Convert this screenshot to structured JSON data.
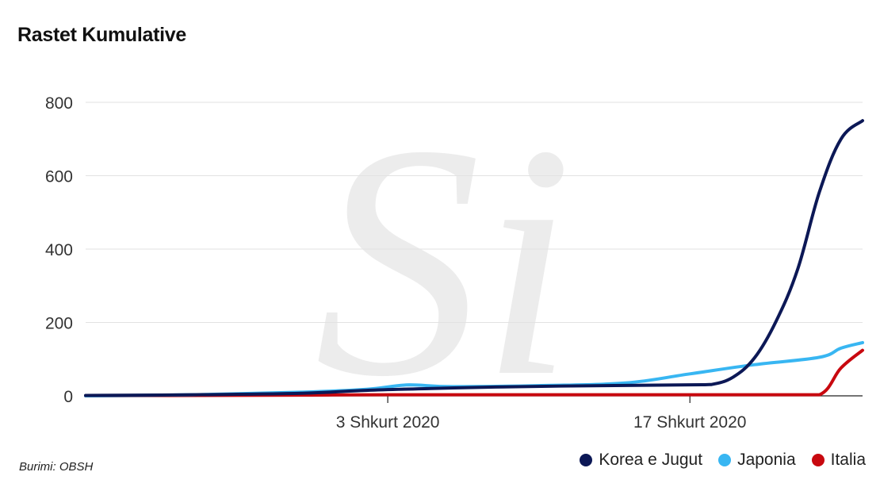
{
  "title": "Rastet Kumulative",
  "source": "Burimi: OBSH",
  "colors": {
    "korea": "#0c1856",
    "japan": "#38b6f2",
    "italy": "#c8080f",
    "grid": "#e2e2e2",
    "axis": "#222222"
  },
  "chart_data": {
    "type": "line",
    "title": "Rastet Kumulative",
    "xlabel": "",
    "ylabel": "",
    "x_range": [
      "2020-01-20",
      "2020-02-25"
    ],
    "ylim": [
      0,
      800
    ],
    "y_ticks": [
      0,
      200,
      400,
      600,
      800
    ],
    "x_ticks": [
      {
        "date": "2020-02-03",
        "label": "3 Shkurt 2020"
      },
      {
        "date": "2020-02-17",
        "label": "17 Shkurt 2020"
      }
    ],
    "grid": true,
    "legend_position": "bottom-right",
    "series": [
      {
        "name": "Korea e Jugut",
        "color": "#0c1856",
        "points": [
          [
            "2020-01-20",
            1
          ],
          [
            "2020-01-25",
            3
          ],
          [
            "2020-01-30",
            7
          ],
          [
            "2020-02-02",
            15
          ],
          [
            "2020-02-05",
            20
          ],
          [
            "2020-02-08",
            24
          ],
          [
            "2020-02-13",
            28
          ],
          [
            "2020-02-17",
            30
          ],
          [
            "2020-02-18",
            31
          ],
          [
            "2020-02-19",
            51
          ],
          [
            "2020-02-20",
            104
          ],
          [
            "2020-02-21",
            204
          ],
          [
            "2020-02-22",
            346
          ],
          [
            "2020-02-23",
            556
          ],
          [
            "2020-02-24",
            700
          ],
          [
            "2020-02-25",
            750
          ]
        ]
      },
      {
        "name": "Japonia",
        "color": "#38b6f2",
        "points": [
          [
            "2020-01-20",
            0
          ],
          [
            "2020-01-25",
            3
          ],
          [
            "2020-01-30",
            10
          ],
          [
            "2020-02-02",
            18
          ],
          [
            "2020-02-04",
            30
          ],
          [
            "2020-02-06",
            25
          ],
          [
            "2020-02-10",
            28
          ],
          [
            "2020-02-14",
            35
          ],
          [
            "2020-02-17",
            60
          ],
          [
            "2020-02-20",
            85
          ],
          [
            "2020-02-23",
            105
          ],
          [
            "2020-02-24",
            130
          ],
          [
            "2020-02-25",
            145
          ]
        ]
      },
      {
        "name": "Italia",
        "color": "#c8080f",
        "points": [
          [
            "2020-01-20",
            0
          ],
          [
            "2020-01-30",
            2
          ],
          [
            "2020-02-03",
            3
          ],
          [
            "2020-02-20",
            3
          ],
          [
            "2020-02-21",
            3
          ],
          [
            "2020-02-23",
            3
          ],
          [
            "2020-02-24",
            76
          ],
          [
            "2020-02-25",
            124
          ]
        ]
      }
    ]
  }
}
